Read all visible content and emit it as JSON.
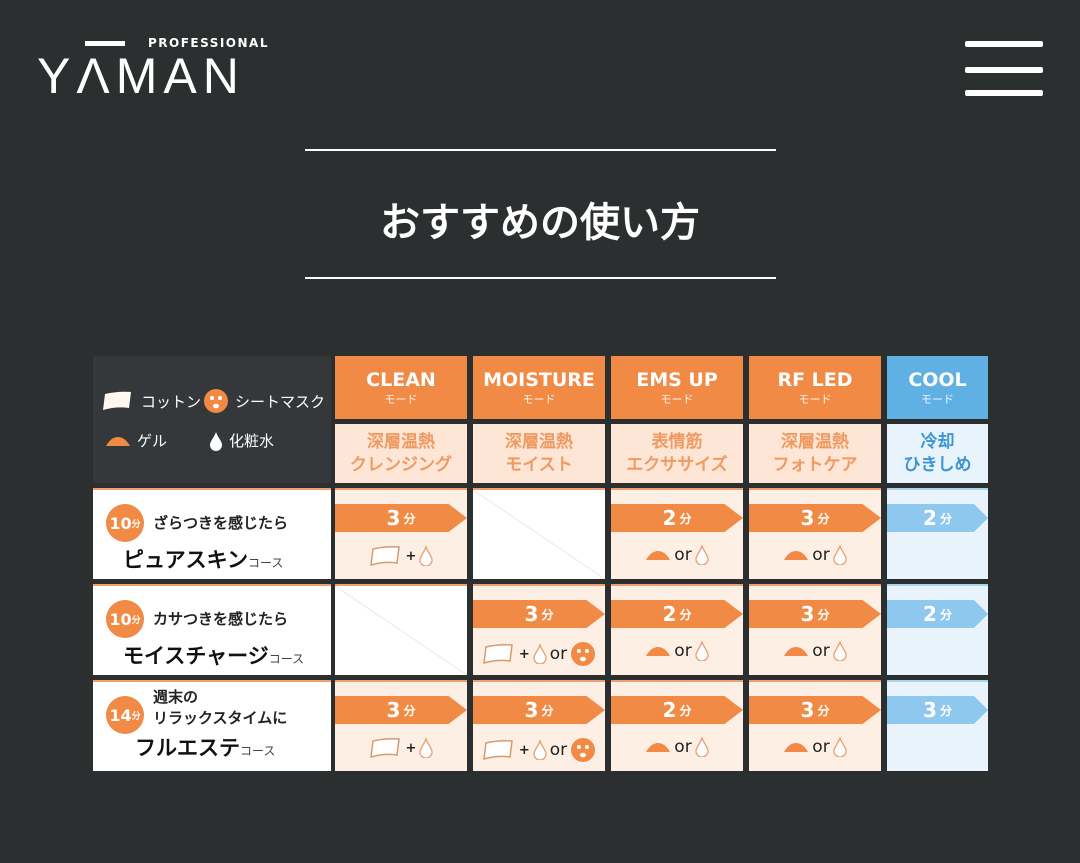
{
  "header": {
    "logo_pro": "PROFESSIONAL",
    "logo_word": "YΛMAN",
    "menu_icon": "hamburger-icon"
  },
  "page": {
    "title": "おすすめの使い方"
  },
  "colors": {
    "bg": "#2c2f30",
    "orange": "#f08a45",
    "peach": "#fdefe4",
    "peach_text": "#ef9a62",
    "blue": "#5fb0e3",
    "light_blue": "#e8f3fb",
    "blue_text": "#3b95d2"
  },
  "legend": {
    "cotton": "コットン",
    "mask": "シートマスク",
    "gel": "ゲル",
    "lotion": "化粧水"
  },
  "modes": [
    {
      "name": "CLEAN",
      "sub": "モード",
      "desc1": "深層温熱",
      "desc2": "クレンジング",
      "theme": "orange"
    },
    {
      "name": "MOISTURE",
      "sub": "モード",
      "desc1": "深層温熱",
      "desc2": "モイスト",
      "theme": "orange"
    },
    {
      "name": "EMS UP",
      "sub": "モード",
      "desc1": "表情筋",
      "desc2": "エクササイズ",
      "theme": "orange"
    },
    {
      "name": "RF LED",
      "sub": "モード",
      "desc1": "深層温熱",
      "desc2": "フォトケア",
      "theme": "orange"
    },
    {
      "name": "COOL",
      "sub": "モード",
      "desc1": "冷却",
      "desc2": "ひきしめ",
      "theme": "blue"
    }
  ],
  "unit": "分",
  "or": "or",
  "plus": "+",
  "courses": [
    {
      "minutes": "10",
      "lead": "ざらつきを感じたら",
      "lead2": "",
      "name": "ピュアスキン",
      "suffix": "コース",
      "cells": [
        {
          "time": "3",
          "items": [
            "cotton",
            "+",
            "drop"
          ]
        },
        null,
        {
          "time": "2",
          "items": [
            "gel",
            "or",
            "drop"
          ]
        },
        {
          "time": "3",
          "items": [
            "gel",
            "or",
            "drop"
          ]
        },
        {
          "time": "2",
          "items": []
        }
      ]
    },
    {
      "minutes": "10",
      "lead": "カサつきを感じたら",
      "lead2": "",
      "name": "モイスチャージ",
      "suffix": "コース",
      "cells": [
        null,
        {
          "time": "3",
          "items": [
            "cotton",
            "+",
            "drop",
            "or",
            "mask"
          ]
        },
        {
          "time": "2",
          "items": [
            "gel",
            "or",
            "drop"
          ]
        },
        {
          "time": "3",
          "items": [
            "gel",
            "or",
            "drop"
          ]
        },
        {
          "time": "2",
          "items": []
        }
      ]
    },
    {
      "minutes": "14",
      "lead": "週末の",
      "lead2": "リラックスタイムに",
      "name": "フルエステ",
      "suffix": "コース",
      "cells": [
        {
          "time": "3",
          "items": [
            "cotton",
            "+",
            "drop"
          ]
        },
        {
          "time": "3",
          "items": [
            "cotton",
            "+",
            "drop",
            "or",
            "mask"
          ]
        },
        {
          "time": "2",
          "items": [
            "gel",
            "or",
            "drop"
          ]
        },
        {
          "time": "3",
          "items": [
            "gel",
            "or",
            "drop"
          ]
        },
        {
          "time": "3",
          "items": []
        }
      ]
    }
  ]
}
